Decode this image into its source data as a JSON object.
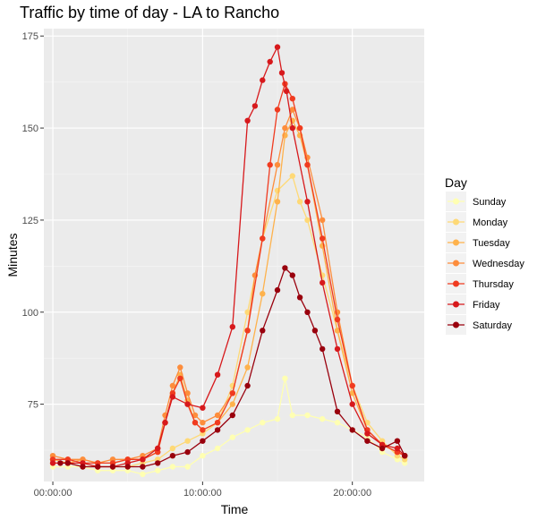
{
  "chart_data": {
    "type": "line",
    "title": "Traffic by time of day - LA to Rancho",
    "xlabel": "Time",
    "ylabel": "Minutes",
    "xlim": [
      -0.6,
      24.8
    ],
    "ylim": [
      54,
      177
    ],
    "x_ticks": [
      {
        "value": 0,
        "label": "00:00:00"
      },
      {
        "value": 10,
        "label": "10:00:00"
      },
      {
        "value": 20,
        "label": "20:00:00"
      }
    ],
    "y_ticks": [
      {
        "value": 75,
        "label": "75"
      },
      {
        "value": 100,
        "label": "100"
      },
      {
        "value": 125,
        "label": "125"
      },
      {
        "value": 150,
        "label": "150"
      },
      {
        "value": 175,
        "label": "175"
      }
    ],
    "legend_title": "Day",
    "legend_position": "right",
    "x_unit": "hours",
    "series": [
      {
        "name": "Sunday",
        "color": "#FFFFB2",
        "x": [
          0,
          1,
          2,
          3,
          4,
          5,
          6,
          7,
          8,
          9,
          10,
          11,
          12,
          13,
          14,
          15,
          15.5,
          16,
          17,
          18,
          19,
          20,
          21,
          22,
          23,
          23.5
        ],
        "y": [
          58,
          58,
          58,
          57,
          57,
          57,
          56,
          57,
          58,
          58,
          61,
          63,
          66,
          68,
          70,
          71,
          82,
          72,
          72,
          71,
          70,
          68,
          66,
          62,
          60,
          59
        ]
      },
      {
        "name": "Monday",
        "color": "#FED976",
        "x": [
          0,
          1,
          2,
          3,
          4,
          5,
          6,
          7,
          8,
          9,
          10,
          11,
          12,
          13,
          14,
          15,
          16,
          16.5,
          17,
          18,
          19,
          20,
          21,
          22,
          23,
          23.5
        ],
        "y": [
          59,
          59,
          58,
          58,
          58,
          58,
          59,
          60,
          63,
          65,
          67,
          70,
          80,
          100,
          120,
          133,
          137,
          130,
          125,
          110,
          95,
          80,
          70,
          65,
          61,
          60
        ]
      },
      {
        "name": "Tuesday",
        "color": "#FEB24C",
        "x": [
          0,
          1,
          2,
          3,
          4,
          5,
          6,
          7,
          7.5,
          8,
          8.5,
          9,
          9.5,
          10,
          11,
          12,
          13,
          14,
          15,
          15.5,
          16,
          16.5,
          17,
          18,
          19,
          20,
          21,
          22,
          23,
          23.5
        ],
        "y": [
          60,
          59,
          60,
          59,
          59,
          60,
          60,
          62,
          70,
          78,
          83,
          76,
          70,
          68,
          70,
          75,
          85,
          105,
          130,
          148,
          152,
          148,
          140,
          118,
          95,
          78,
          68,
          64,
          62,
          61
        ]
      },
      {
        "name": "Wednesday",
        "color": "#FD8D3C",
        "x": [
          0,
          1,
          2,
          3,
          4,
          5,
          6,
          7,
          7.5,
          8,
          8.5,
          9,
          9.5,
          10,
          11,
          12,
          13,
          13.5,
          14,
          15,
          15.5,
          16,
          16.5,
          17,
          18,
          19,
          20,
          21,
          22,
          23,
          23.5
        ],
        "y": [
          61,
          60,
          60,
          59,
          60,
          60,
          61,
          63,
          72,
          80,
          85,
          78,
          72,
          70,
          72,
          78,
          95,
          110,
          120,
          140,
          150,
          155,
          150,
          142,
          125,
          100,
          80,
          68,
          64,
          62,
          61
        ]
      },
      {
        "name": "Thursday",
        "color": "#F03B20",
        "x": [
          0,
          1,
          2,
          3,
          4,
          5,
          6,
          7,
          7.5,
          8,
          8.5,
          9,
          9.5,
          10,
          11,
          12,
          13,
          14,
          14.5,
          15,
          15.5,
          16,
          16.5,
          17,
          18,
          19,
          20,
          21,
          22,
          23,
          23.5
        ],
        "y": [
          60,
          60,
          59,
          59,
          59,
          60,
          60,
          62,
          70,
          78,
          82,
          75,
          70,
          68,
          70,
          78,
          95,
          120,
          140,
          155,
          162,
          158,
          150,
          140,
          120,
          98,
          80,
          68,
          64,
          62,
          61
        ]
      },
      {
        "name": "Friday",
        "color": "#D7191C",
        "x": [
          0,
          1,
          2,
          3,
          4,
          5,
          6,
          7,
          7.5,
          8,
          9,
          10,
          11,
          12,
          13,
          13.5,
          14,
          14.5,
          15,
          15.3,
          15.6,
          16,
          17,
          18,
          19,
          20,
          21,
          22,
          23,
          23.5
        ],
        "y": [
          59,
          59,
          59,
          58,
          58,
          59,
          60,
          63,
          70,
          77,
          75,
          74,
          83,
          96,
          152,
          156,
          163,
          168,
          172,
          165,
          160,
          150,
          130,
          108,
          90,
          75,
          67,
          64,
          63,
          61
        ]
      },
      {
        "name": "Saturday",
        "color": "#99000D",
        "x": [
          0.5,
          1,
          2,
          3,
          4,
          5,
          6,
          7,
          8,
          9,
          10,
          11,
          12,
          13,
          14,
          15,
          15.5,
          16,
          16.5,
          17,
          17.5,
          18,
          19,
          20,
          21,
          22,
          23,
          23.5
        ],
        "y": [
          59,
          59,
          58,
          58,
          58,
          58,
          58,
          59,
          61,
          62,
          65,
          68,
          72,
          80,
          95,
          106,
          112,
          110,
          104,
          100,
          95,
          90,
          73,
          68,
          65,
          63,
          65,
          61
        ]
      }
    ]
  }
}
